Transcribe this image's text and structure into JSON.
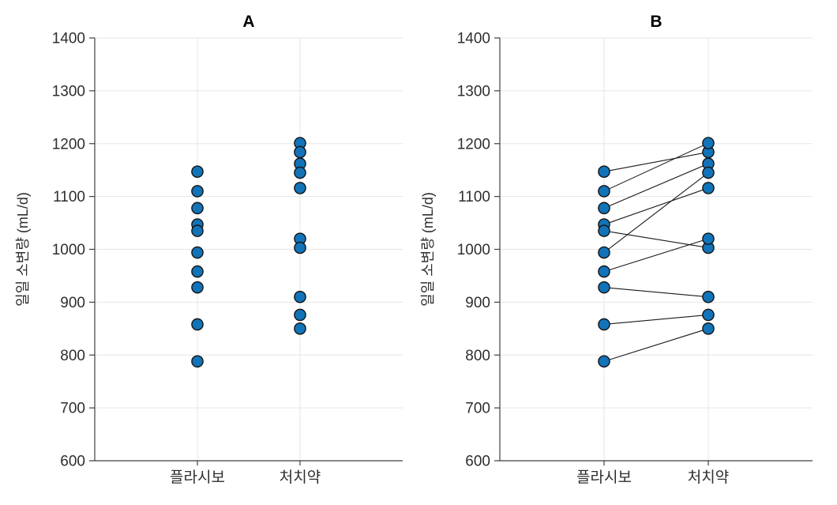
{
  "figure": {
    "background": "#ffffff",
    "description": "Paired scatter plot of daily urine volume, placebo vs treatment"
  },
  "style": {
    "marker_fill": "#1273b8",
    "marker_edge": "#141414",
    "pair_line_color": "#1a1a1a",
    "grid_color": "#e6e6e6",
    "axis_color": "#3f3f3f",
    "text_color": "#2e2e2e",
    "title_color": "#000000"
  },
  "chart_data": [
    {
      "type": "scatter",
      "panel": "A",
      "title": "A",
      "ylabel": "일일 소변량 (mL/d)",
      "xlabel": "",
      "categories": [
        "플라시보",
        "처치약"
      ],
      "ylim": [
        600,
        1400
      ],
      "yticks": [
        600,
        700,
        800,
        900,
        1000,
        1100,
        1200,
        1300,
        1400
      ],
      "grid": true,
      "legend": "none",
      "paired_lines": false,
      "series": [
        {
          "name": "플라시보",
          "values": [
            1147,
            1110,
            1078,
            1047,
            1035,
            994,
            958,
            928,
            858,
            788
          ]
        },
        {
          "name": "처치약",
          "values": [
            1201,
            1184,
            1162,
            1145,
            1116,
            1020,
            1003,
            910,
            876,
            850
          ]
        }
      ]
    },
    {
      "type": "scatter",
      "panel": "B",
      "title": "B",
      "ylabel": "일일 소변량 (mL/d)",
      "xlabel": "",
      "categories": [
        "플라시보",
        "처치약"
      ],
      "ylim": [
        600,
        1400
      ],
      "yticks": [
        600,
        700,
        800,
        900,
        1000,
        1100,
        1200,
        1300,
        1400
      ],
      "grid": true,
      "legend": "none",
      "paired_lines": true,
      "pairs": [
        [
          1147,
          1184
        ],
        [
          1110,
          1201
        ],
        [
          1078,
          1162
        ],
        [
          1047,
          1116
        ],
        [
          1035,
          1003
        ],
        [
          994,
          1145
        ],
        [
          958,
          1020
        ],
        [
          928,
          910
        ],
        [
          858,
          876
        ],
        [
          788,
          850
        ]
      ]
    }
  ]
}
